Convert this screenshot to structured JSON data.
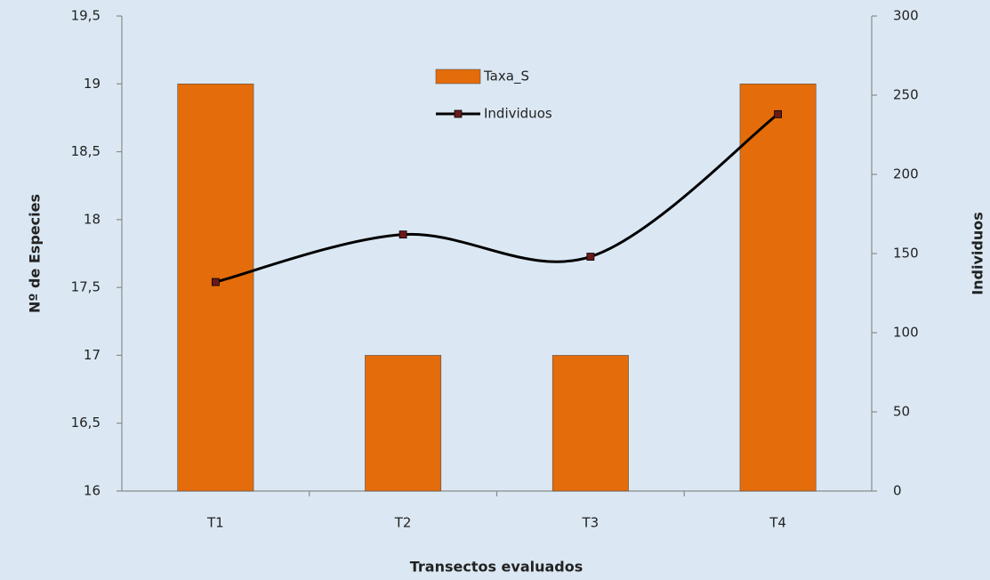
{
  "chart_data": {
    "type": "bar",
    "categories": [
      "T1",
      "T2",
      "T3",
      "T4"
    ],
    "series": [
      {
        "name": "Taxa_S",
        "type": "bar",
        "color": "#e46c0a",
        "values": [
          19,
          17,
          17,
          19
        ]
      },
      {
        "name": "Individuos",
        "type": "line",
        "axis": "y2",
        "color": "#000000",
        "marker_color": "#6b1a1a",
        "values": [
          132,
          162,
          148,
          238
        ]
      }
    ],
    "ylabel": "Nº  de  Especies",
    "y2label": "Individuos",
    "xlabel": "Transectos  evaluados",
    "ylim": [
      16,
      19.5
    ],
    "yticks": [
      16,
      {
        "value": 16.5,
        "label": "16,5"
      },
      17,
      {
        "value": 17.5,
        "label": "17,5"
      },
      18,
      {
        "value": 18.5,
        "label": "18,5"
      },
      19,
      {
        "value": 19.5,
        "label": "19,5"
      }
    ],
    "y2lim": [
      0,
      300
    ],
    "y2ticks": [
      0,
      50,
      100,
      150,
      200,
      250,
      300
    ],
    "legend": "top",
    "grid": false
  }
}
